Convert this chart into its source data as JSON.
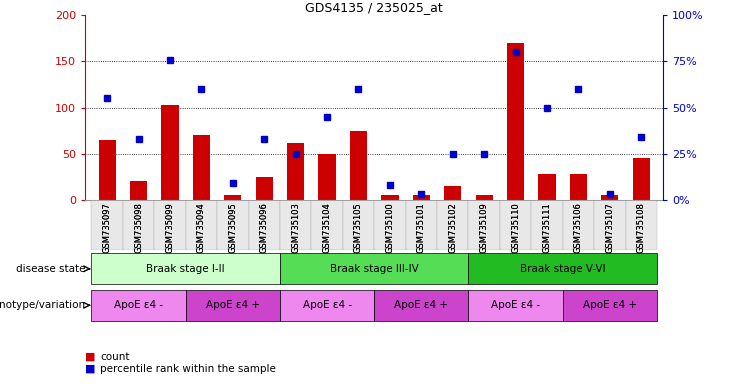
{
  "title": "GDS4135 / 235025_at",
  "samples": [
    "GSM735097",
    "GSM735098",
    "GSM735099",
    "GSM735094",
    "GSM735095",
    "GSM735096",
    "GSM735103",
    "GSM735104",
    "GSM735105",
    "GSM735100",
    "GSM735101",
    "GSM735102",
    "GSM735109",
    "GSM735110",
    "GSM735111",
    "GSM735106",
    "GSM735107",
    "GSM735108"
  ],
  "counts": [
    65,
    20,
    103,
    70,
    5,
    25,
    62,
    50,
    75,
    5,
    5,
    15,
    5,
    170,
    28,
    28,
    5,
    45
  ],
  "percentiles": [
    55,
    33,
    76,
    60,
    9,
    33,
    25,
    45,
    60,
    8,
    3,
    25,
    25,
    80,
    50,
    60,
    3,
    34
  ],
  "bar_color": "#cc0000",
  "dot_color": "#0000cc",
  "ylim_left": [
    0,
    200
  ],
  "yticks_left": [
    0,
    50,
    100,
    150,
    200
  ],
  "ytick_labels_right": [
    "0%",
    "25%",
    "50%",
    "75%",
    "100%"
  ],
  "disease_stages": [
    {
      "label": "Braak stage I-II",
      "start": 0,
      "end": 6,
      "color": "#ccffcc"
    },
    {
      "label": "Braak stage III-IV",
      "start": 6,
      "end": 12,
      "color": "#55dd55"
    },
    {
      "label": "Braak stage V-VI",
      "start": 12,
      "end": 18,
      "color": "#22bb22"
    }
  ],
  "genotype_groups": [
    {
      "label": "ApoE ε4 -",
      "start": 0,
      "end": 3,
      "color": "#ee88ee"
    },
    {
      "label": "ApoE ε4 +",
      "start": 3,
      "end": 6,
      "color": "#cc44cc"
    },
    {
      "label": "ApoE ε4 -",
      "start": 6,
      "end": 9,
      "color": "#ee88ee"
    },
    {
      "label": "ApoE ε4 +",
      "start": 9,
      "end": 12,
      "color": "#cc44cc"
    },
    {
      "label": "ApoE ε4 -",
      "start": 12,
      "end": 15,
      "color": "#ee88ee"
    },
    {
      "label": "ApoE ε4 +",
      "start": 15,
      "end": 18,
      "color": "#cc44cc"
    }
  ],
  "left_axis_color": "#cc0000",
  "right_axis_color": "#0000cc",
  "row_label_disease": "disease state",
  "row_label_geno": "genotype/variation",
  "legend_count_label": "count",
  "legend_pct_label": "percentile rank within the sample"
}
